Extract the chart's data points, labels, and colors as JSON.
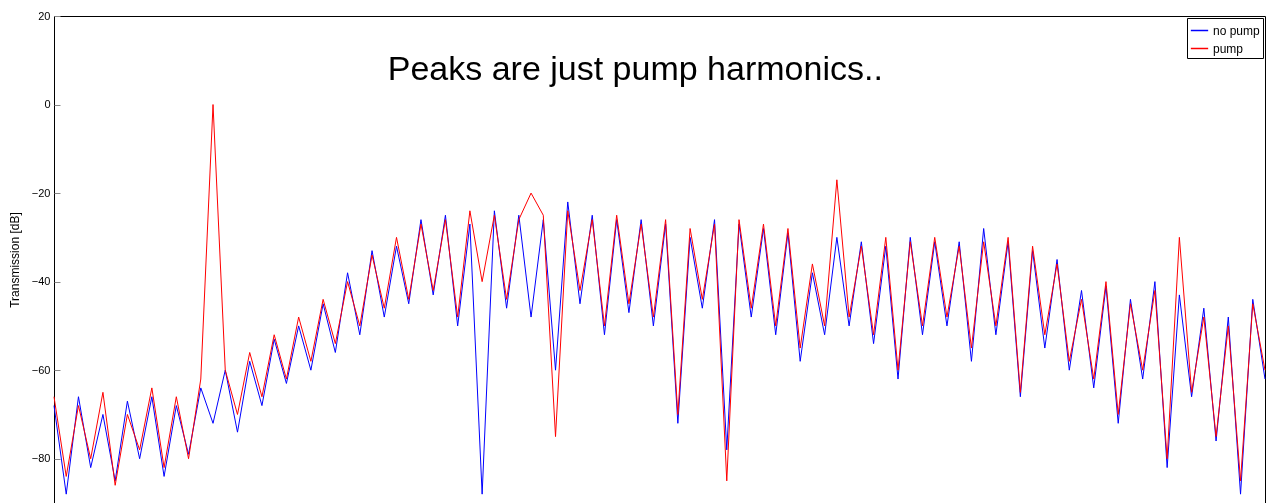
{
  "chart_data": {
    "type": "line",
    "ylabel": "Transmission [dB]",
    "annotations": [
      "Peaks are just pump harmonics.."
    ],
    "categories": [
      null,
      null,
      null,
      null,
      null,
      null,
      null,
      null,
      null,
      null,
      null,
      null,
      null,
      null,
      null,
      null,
      null,
      null,
      null,
      null,
      null,
      null,
      null,
      null,
      null,
      null,
      null,
      null,
      null,
      null,
      null,
      null,
      null,
      null,
      null,
      null,
      null,
      null,
      null,
      null,
      null,
      null,
      null,
      null,
      null,
      null,
      null,
      null,
      null,
      null,
      null,
      null,
      null,
      null,
      null,
      null,
      null,
      null,
      null,
      null,
      null,
      null,
      null,
      null,
      null,
      null,
      null,
      null,
      null,
      null,
      null,
      null,
      null,
      null,
      null,
      null,
      null,
      null,
      null,
      null,
      null,
      null,
      null,
      null,
      null,
      null,
      null,
      null,
      null,
      null,
      null,
      null,
      null,
      null,
      null,
      null,
      null,
      null,
      null,
      null
    ],
    "ylim": [
      -90,
      20
    ],
    "yticks": [
      20,
      0,
      -20,
      -40,
      -60,
      -80
    ],
    "tick_labels": "y",
    "grid": false,
    "legend": "top right",
    "line_style": "solid",
    "marker": "none",
    "series": [
      {
        "name": "no pump",
        "color": "#0000ff",
        "values": [
          -68,
          -88,
          -66,
          -82,
          -70,
          -85,
          -67,
          -80,
          -66,
          -84,
          -68,
          -79,
          -64,
          -72,
          -60,
          -74,
          -58,
          -68,
          -53,
          -63,
          -50,
          -60,
          -45,
          -56,
          -38,
          -52,
          -33,
          -48,
          -32,
          -45,
          -26,
          -43,
          -25,
          -50,
          -27,
          -88,
          -24,
          -46,
          -25,
          -48,
          -26,
          -60,
          -22,
          -45,
          -25,
          -52,
          -26,
          -47,
          -26,
          -50,
          -27,
          -72,
          -30,
          -46,
          -26,
          -78,
          -27,
          -48,
          -28,
          -52,
          -29,
          -58,
          -38,
          -52,
          -30,
          -50,
          -31,
          -54,
          -32,
          -62,
          -30,
          -52,
          -31,
          -50,
          -31,
          -58,
          -28,
          -52,
          -31,
          -66,
          -33,
          -55,
          -35,
          -60,
          -42,
          -64,
          -41,
          -72,
          -44,
          -62,
          -40,
          -82,
          -43,
          -66,
          -46,
          -76,
          -48,
          -88,
          -44,
          -62
        ]
      },
      {
        "name": "pump",
        "color": "#ff0000",
        "values": [
          -66,
          -84,
          -68,
          -80,
          -65,
          -86,
          -70,
          -78,
          -64,
          -82,
          -66,
          -80,
          -62,
          0,
          -60,
          -70,
          -56,
          -66,
          -52,
          -62,
          -48,
          -58,
          -44,
          -54,
          -40,
          -50,
          -34,
          -46,
          -30,
          -44,
          -27,
          -42,
          -26,
          -48,
          -24,
          -40,
          -25,
          -44,
          -26,
          -20,
          -25,
          -75,
          -24,
          -42,
          -26,
          -50,
          -25,
          -45,
          -27,
          -48,
          -26,
          -70,
          -28,
          -44,
          -27,
          -85,
          -26,
          -46,
          -27,
          -50,
          -28,
          -55,
          -36,
          -50,
          -17,
          -48,
          -32,
          -52,
          -30,
          -60,
          -31,
          -50,
          -30,
          -48,
          -32,
          -55,
          -31,
          -50,
          -30,
          -65,
          -32,
          -52,
          -36,
          -58,
          -44,
          -62,
          -40,
          -70,
          -45,
          -60,
          -42,
          -80,
          -30,
          -65,
          -48,
          -75,
          -50,
          -85,
          -45,
          -60
        ]
      }
    ]
  }
}
